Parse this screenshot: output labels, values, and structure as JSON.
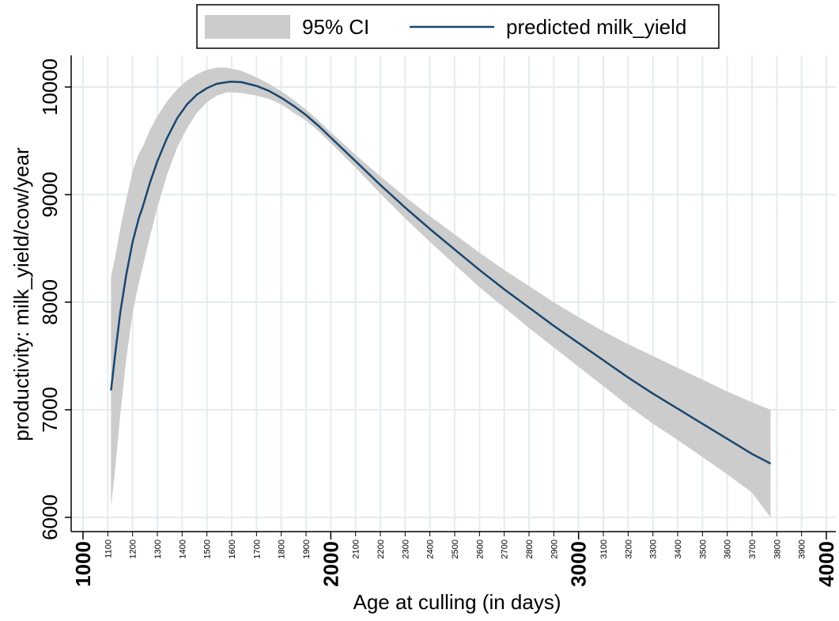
{
  "chart_data": {
    "type": "line",
    "xlabel": "Age at culling (in days)",
    "ylabel": "productivity: milk_yield/cow/year",
    "xlim": [
      1000,
      4000
    ],
    "ylim": [
      6000,
      10000
    ],
    "grid": true,
    "legend_position": "top-center",
    "x_major_ticks": [
      1000,
      2000,
      3000,
      4000
    ],
    "x_minor_ticks": [
      1100,
      1200,
      1300,
      1400,
      1500,
      1600,
      1700,
      1800,
      1900,
      2100,
      2200,
      2300,
      2400,
      2500,
      2600,
      2700,
      2800,
      2900,
      3100,
      3200,
      3300,
      3400,
      3500,
      3600,
      3700,
      3800,
      3900
    ],
    "y_ticks": [
      6000,
      7000,
      8000,
      9000,
      10000
    ],
    "series": [
      {
        "name": "predicted milk_yield",
        "color": "#1a476f",
        "x": [
          1113,
          1130,
          1150,
          1175,
          1200,
          1225,
          1240,
          1270,
          1300,
          1340,
          1380,
          1420,
          1460,
          1500,
          1540,
          1580,
          1600,
          1640,
          1700,
          1750,
          1800,
          1850,
          1900,
          1950,
          2000,
          2100,
          2200,
          2300,
          2400,
          2500,
          2600,
          2700,
          2800,
          2900,
          3000,
          3100,
          3200,
          3300,
          3400,
          3500,
          3600,
          3700,
          3775
        ],
        "y": [
          7180,
          7520,
          7900,
          8260,
          8560,
          8780,
          8880,
          9110,
          9310,
          9530,
          9710,
          9840,
          9930,
          9990,
          10030,
          10045,
          10050,
          10045,
          10010,
          9965,
          9900,
          9825,
          9740,
          9640,
          9530,
          9310,
          9090,
          8880,
          8680,
          8490,
          8300,
          8120,
          7950,
          7780,
          7620,
          7460,
          7300,
          7150,
          7010,
          6870,
          6730,
          6590,
          6500
        ]
      }
    ],
    "band": {
      "name": "95% CI",
      "color": "#cccccc",
      "x": [
        1113,
        1130,
        1150,
        1175,
        1200,
        1225,
        1240,
        1270,
        1300,
        1340,
        1380,
        1420,
        1460,
        1500,
        1540,
        1580,
        1600,
        1640,
        1700,
        1750,
        1800,
        1850,
        1900,
        1950,
        2000,
        2100,
        2200,
        2300,
        2400,
        2500,
        2600,
        2700,
        2800,
        2900,
        3000,
        3100,
        3200,
        3300,
        3400,
        3500,
        3600,
        3700,
        3775
      ],
      "upper": [
        8240,
        8420,
        8680,
        8960,
        9220,
        9380,
        9440,
        9600,
        9730,
        9870,
        9980,
        10060,
        10120,
        10160,
        10180,
        10180,
        10170,
        10150,
        10090,
        10030,
        9960,
        9880,
        9790,
        9690,
        9580,
        9370,
        9170,
        8980,
        8800,
        8630,
        8460,
        8300,
        8150,
        8000,
        7860,
        7730,
        7610,
        7500,
        7390,
        7280,
        7170,
        7070,
        7000
      ],
      "lower": [
        6100,
        6450,
        6950,
        7480,
        7900,
        8180,
        8320,
        8610,
        8880,
        9190,
        9440,
        9620,
        9760,
        9860,
        9920,
        9950,
        9950,
        9945,
        9920,
        9890,
        9840,
        9760,
        9690,
        9590,
        9480,
        9250,
        9010,
        8780,
        8560,
        8350,
        8140,
        7950,
        7760,
        7580,
        7400,
        7220,
        7040,
        6870,
        6720,
        6560,
        6400,
        6230,
        6000
      ]
    }
  }
}
